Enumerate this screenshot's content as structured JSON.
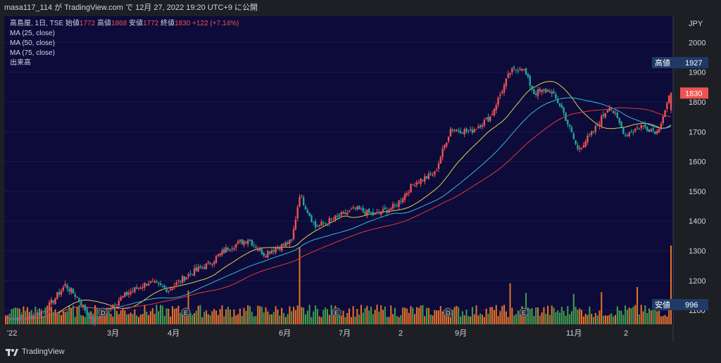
{
  "header": {
    "publisher": "masa117_114 が TradingView.com で 12月 27, 2022 19:20 UTC+9 に公開"
  },
  "legend": {
    "symbol": "高島屋, 1日, TSE",
    "open_label": "始値",
    "open": "1772",
    "high_label": "高値",
    "high": "1868",
    "low_label": "安値",
    "low": "1772",
    "close_label": "終値",
    "close": "1830",
    "change": "+122 (+7.14%)",
    "ma25": "MA (25, close)",
    "ma50": "MA (50, close)",
    "ma75": "MA (75, close)",
    "volume": "出来高"
  },
  "footer": {
    "brand": "TradingView"
  },
  "colors": {
    "up": "#ef5350",
    "down": "#26a69a",
    "vol_up": "#ff7f27",
    "vol_down": "#4caf50",
    "ma25": "#e6d04a",
    "ma50": "#3bb8d6",
    "ma75": "#e53935",
    "bg": "#0c0b3a",
    "axis_bg": "#1e1f25"
  },
  "chart_data": {
    "type": "candlestick",
    "currency": "JPY",
    "y_ticks": [
      1100,
      1200,
      1300,
      1400,
      1500,
      1600,
      1700,
      1800,
      1900,
      2000
    ],
    "ylim": [
      1020,
      2060
    ],
    "x_ticks": [
      "'22",
      "3月",
      "4月",
      "6月",
      "7月",
      "2",
      "9月",
      "11月",
      "2"
    ],
    "price_labels": [
      {
        "label": "高値",
        "value": "1927"
      },
      {
        "label": "",
        "value": "1830"
      },
      {
        "label": "安値",
        "value": "996"
      }
    ],
    "events": [
      "D",
      "E",
      "E",
      "D",
      "E"
    ],
    "anchors": [
      {
        "i": 0,
        "p": 1075
      },
      {
        "i": 10,
        "p": 1072
      },
      {
        "i": 20,
        "p": 1100
      },
      {
        "i": 30,
        "p": 1185
      },
      {
        "i": 36,
        "p": 1145
      },
      {
        "i": 44,
        "p": 1060
      },
      {
        "i": 52,
        "p": 1110
      },
      {
        "i": 62,
        "p": 1160
      },
      {
        "i": 72,
        "p": 1195
      },
      {
        "i": 82,
        "p": 1170
      },
      {
        "i": 92,
        "p": 1220
      },
      {
        "i": 102,
        "p": 1255
      },
      {
        "i": 112,
        "p": 1310
      },
      {
        "i": 122,
        "p": 1340
      },
      {
        "i": 130,
        "p": 1290
      },
      {
        "i": 136,
        "p": 1310
      },
      {
        "i": 144,
        "p": 1330
      },
      {
        "i": 148,
        "p": 1490
      },
      {
        "i": 156,
        "p": 1380
      },
      {
        "i": 166,
        "p": 1410
      },
      {
        "i": 176,
        "p": 1440
      },
      {
        "i": 186,
        "p": 1420
      },
      {
        "i": 196,
        "p": 1450
      },
      {
        "i": 206,
        "p": 1530
      },
      {
        "i": 216,
        "p": 1560
      },
      {
        "i": 224,
        "p": 1710
      },
      {
        "i": 234,
        "p": 1700
      },
      {
        "i": 244,
        "p": 1750
      },
      {
        "i": 254,
        "p": 1900
      },
      {
        "i": 260,
        "p": 1920
      },
      {
        "i": 266,
        "p": 1830
      },
      {
        "i": 274,
        "p": 1840
      },
      {
        "i": 280,
        "p": 1780
      },
      {
        "i": 288,
        "p": 1640
      },
      {
        "i": 296,
        "p": 1700
      },
      {
        "i": 304,
        "p": 1790
      },
      {
        "i": 312,
        "p": 1690
      },
      {
        "i": 320,
        "p": 1720
      },
      {
        "i": 328,
        "p": 1700
      },
      {
        "i": 335,
        "p": 1830
      }
    ]
  }
}
